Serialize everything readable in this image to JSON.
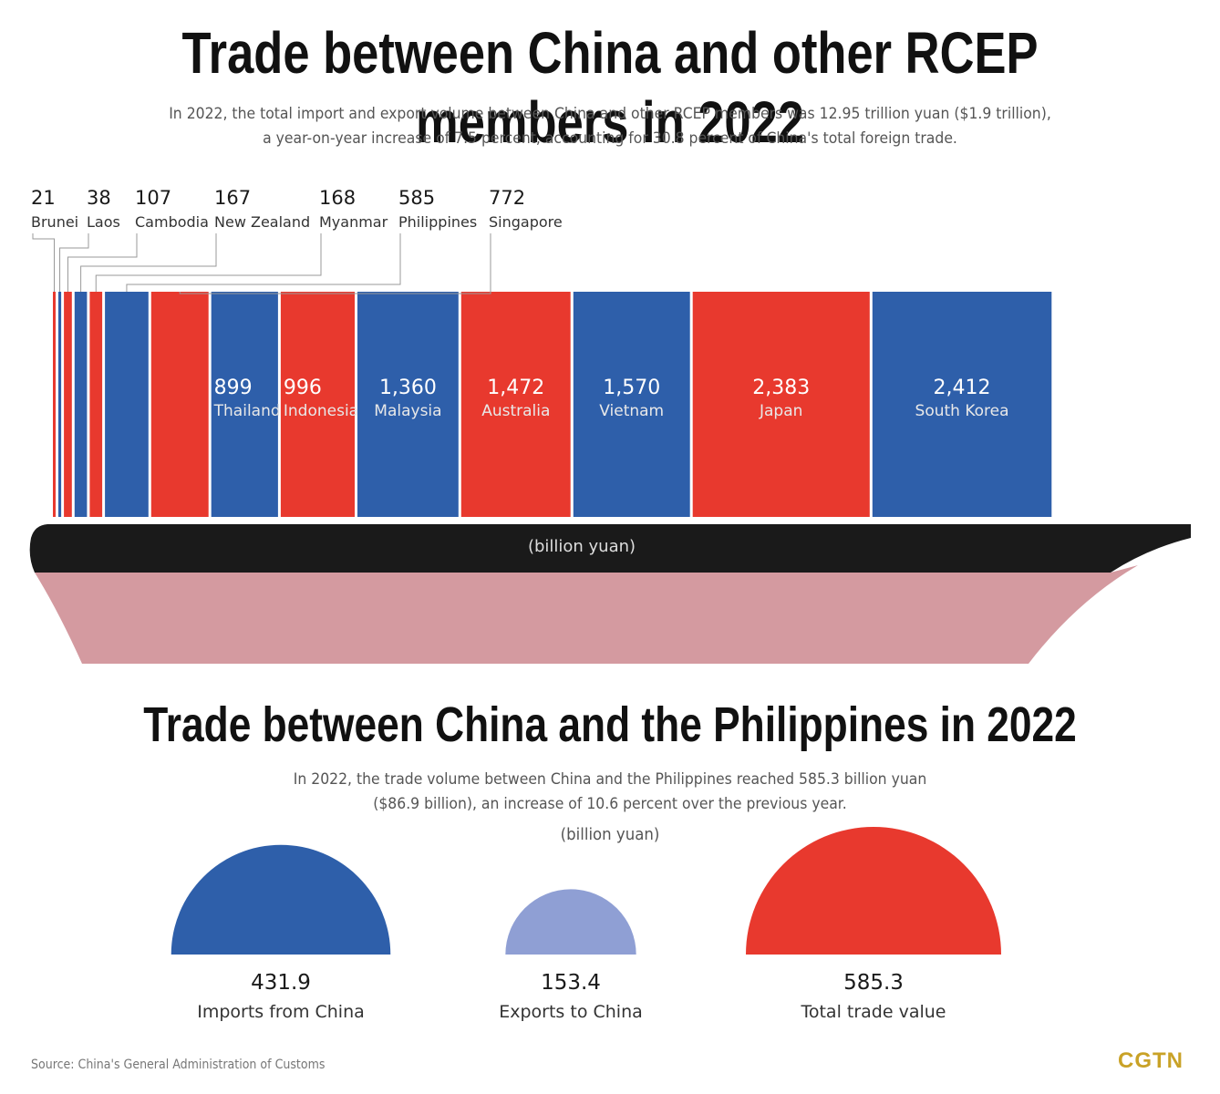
{
  "title1": "Trade between China and other RCEP members in 2022",
  "subtitle1_line1": "In 2022, the total import and export volume between China and other RCEP members was 12.95 trillion yuan ($1.9 trillion),",
  "subtitle1_line2": "a year-on-year increase of 7.5 percent, accounting for 30.8 percent of China's total foreign trade.",
  "title2": "Trade between China and the Philippines in 2022",
  "subtitle2_line1": "In 2022, the trade volume between China and the Philippines reached 585.3 billion yuan",
  "subtitle2_line2": "($86.9 billion), an increase of 10.6 percent over the previous year.",
  "source": "Source: China's General Administration of Customs",
  "logo": "CGTN",
  "colors": {
    "blue": "#2e5faa",
    "red": "#e8392e",
    "light_blue": "#8f9fd4",
    "hull_top": "#1a1a1a",
    "hull_bottom": "#d49aa0"
  },
  "chart_data": [
    {
      "type": "bar",
      "unit_label": "(billion yuan)",
      "categories": [
        "Brunei",
        "Laos",
        "Cambodia",
        "New Zealand",
        "Myanmar",
        "Philippines",
        "Singapore",
        "Thailand",
        "Indonesia",
        "Malaysia",
        "Australia",
        "Vietnam",
        "Japan",
        "South Korea"
      ],
      "values": [
        21,
        38,
        107,
        167,
        168,
        585,
        772,
        899,
        996,
        1360,
        1472,
        1570,
        2383,
        2412
      ],
      "value_labels": [
        "21",
        "38",
        "107",
        "167",
        "168",
        "585",
        "772",
        "899",
        "996",
        "1,360",
        "1,472",
        "1,570",
        "2,383",
        "2,412"
      ],
      "bar_colors": [
        "red",
        "blue",
        "red",
        "blue",
        "red",
        "blue",
        "red",
        "blue",
        "red",
        "blue",
        "red",
        "blue",
        "red",
        "blue"
      ]
    },
    {
      "type": "bar",
      "unit_label": "(billion yuan)",
      "categories": [
        "Imports from China",
        "Exports to China",
        "Total trade value"
      ],
      "values": [
        431.9,
        153.4,
        585.3
      ],
      "value_labels": [
        "431.9",
        "153.4",
        "585.3"
      ],
      "bar_colors": [
        "blue",
        "light_blue",
        "red"
      ]
    }
  ]
}
